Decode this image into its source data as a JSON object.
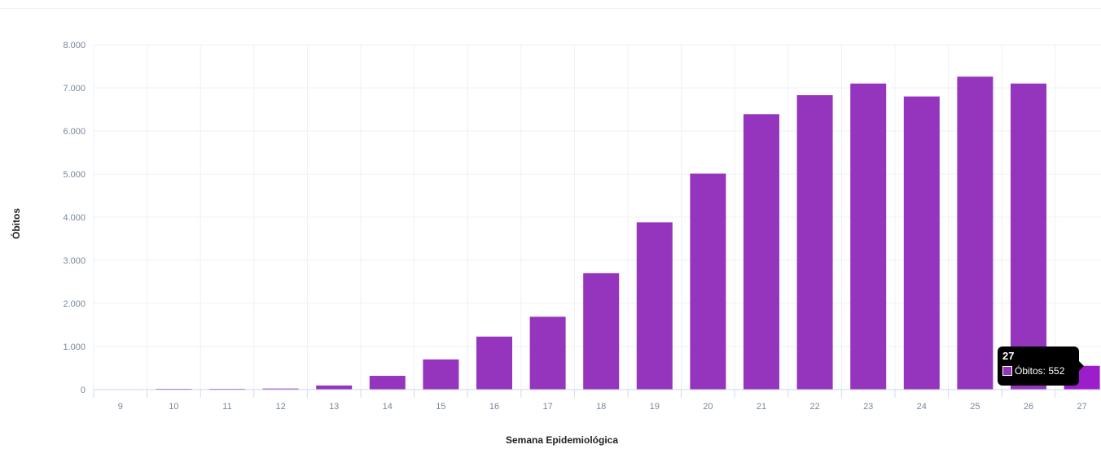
{
  "chart_data": {
    "type": "bar",
    "xlabel": "Semana Epidemiológica",
    "ylabel": "Óbitos",
    "categories": [
      "9",
      "10",
      "11",
      "12",
      "13",
      "14",
      "15",
      "16",
      "17",
      "18",
      "19",
      "20",
      "21",
      "22",
      "23",
      "24",
      "25",
      "26",
      "27"
    ],
    "series": [
      {
        "name": "Óbitos",
        "values": [
          0,
          2,
          5,
          25,
          95,
          320,
          700,
          1230,
          1690,
          2700,
          3880,
          5010,
          6390,
          6830,
          7100,
          6800,
          7260,
          7100,
          552
        ]
      }
    ],
    "ylim": [
      0,
      8000
    ],
    "yticks": [
      0,
      1000,
      2000,
      3000,
      4000,
      5000,
      6000,
      7000,
      8000
    ],
    "ytick_labels": [
      "0",
      "1.000",
      "2.000",
      "3.000",
      "4.000",
      "5.000",
      "6.000",
      "7.000",
      "8.000"
    ],
    "grid": true,
    "legend": "none",
    "colors": {
      "bar": "#9534bc",
      "bar_highlight": "#9c1ecb",
      "grid": "#eef1f5",
      "tick": "#7a879d"
    }
  },
  "tooltip": {
    "title": "27",
    "label": "Óbitos: 552",
    "color": "#9534bc"
  }
}
